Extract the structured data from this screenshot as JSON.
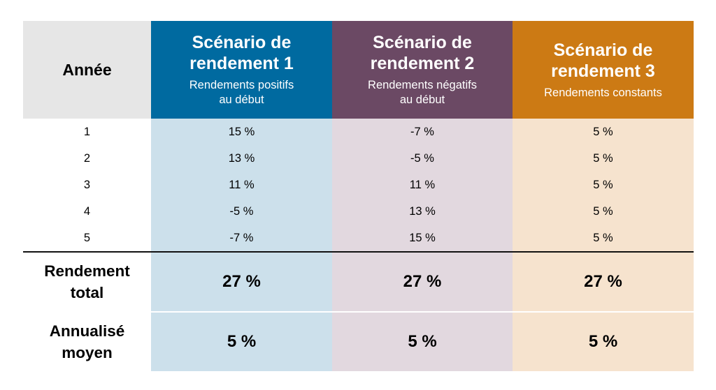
{
  "chart_data": {
    "type": "table",
    "corner_label": "Année",
    "columns": [
      {
        "title": "Scénario de rendement 1",
        "title_lines": [
          "Scénario de",
          "rendement 1"
        ],
        "subtitle_lines": [
          "Rendements positifs",
          "au début"
        ],
        "color": "#006aa0"
      },
      {
        "title": "Scénario de rendement 2",
        "title_lines": [
          "Scénario de",
          "rendement 2"
        ],
        "subtitle_lines": [
          "Rendements négatifs",
          "au début"
        ],
        "color": "#6b4964"
      },
      {
        "title": "Scénario de rendement 3",
        "title_lines": [
          "Scénario de",
          "rendement 3"
        ],
        "subtitle_lines": [
          "Rendements constants"
        ],
        "color": "#cc7a14"
      }
    ],
    "rows": [
      {
        "year": "1",
        "values": [
          "15 %",
          "-7 %",
          "5 %"
        ]
      },
      {
        "year": "2",
        "values": [
          "13 %",
          "-5 %",
          "5 %"
        ]
      },
      {
        "year": "3",
        "values": [
          "11 %",
          "11 %",
          "5 %"
        ]
      },
      {
        "year": "4",
        "values": [
          "-5 %",
          "13 %",
          "5 %"
        ]
      },
      {
        "year": "5",
        "values": [
          "-7 %",
          "15 %",
          "5 %"
        ]
      }
    ],
    "summary": [
      {
        "label_lines": [
          "Rendement",
          "total"
        ],
        "values": [
          "27 %",
          "27 %",
          "27 %"
        ]
      },
      {
        "label_lines": [
          "Annualisé",
          "moyen"
        ],
        "values": [
          "5 %",
          "5 %",
          "5 %"
        ]
      }
    ]
  }
}
